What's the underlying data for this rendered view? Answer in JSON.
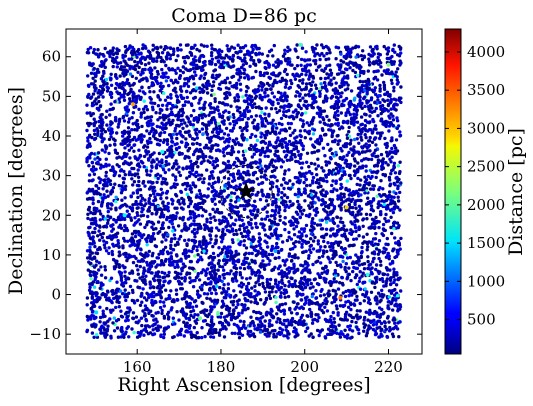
{
  "chart_data": {
    "type": "scatter",
    "title": "Coma  D=86 pc",
    "xlabel": "Right Ascension [degrees]",
    "ylabel": "Declination [degrees]",
    "xlim": [
      143,
      228
    ],
    "ylim": [
      -15,
      67
    ],
    "xticks": [
      160,
      180,
      200,
      220
    ],
    "yticks": [
      -10,
      0,
      10,
      20,
      30,
      40,
      50,
      60
    ],
    "field": {
      "ra_range": [
        148,
        223
      ],
      "dec_range": [
        -11,
        63
      ]
    },
    "cluster_center": {
      "ra": 186,
      "dec": 26,
      "marker": "star"
    },
    "colorbar": {
      "label": "Distance [pc]",
      "range": [
        50,
        4300
      ],
      "ticks": [
        500,
        1000,
        1500,
        2000,
        2500,
        3000,
        3500,
        4000
      ],
      "colormap": "jet"
    },
    "sample_points": [
      {
        "ra": 150.2,
        "dec": -4.5,
        "dist": 1500
      },
      {
        "ra": 159.0,
        "dec": 48.0,
        "dist": 3100
      },
      {
        "ra": 181.0,
        "dec": 27.5,
        "dist": 900
      },
      {
        "ra": 208.5,
        "dec": -0.8,
        "dist": 3300
      },
      {
        "ra": 215.0,
        "dec": 5.0,
        "dist": 1800
      },
      {
        "ra": 199.0,
        "dec": 63.0,
        "dist": 1900
      },
      {
        "ra": 166.0,
        "dec": 36.0,
        "dist": 1700
      },
      {
        "ra": 193.0,
        "dec": 11.0,
        "dist": 1300
      },
      {
        "ra": 210.0,
        "dec": 22.0,
        "dist": 2900
      },
      {
        "ra": 175.0,
        "dec": -6.0,
        "dist": 2100
      },
      {
        "ra": 157.0,
        "dec": 20.0,
        "dist": 1600
      },
      {
        "ra": 220.0,
        "dec": 58.0,
        "dist": 2200
      }
    ],
    "n_points": 6500,
    "dominant_distance_range": [
      50,
      500
    ],
    "grid": false,
    "ticks_direction": "in"
  }
}
